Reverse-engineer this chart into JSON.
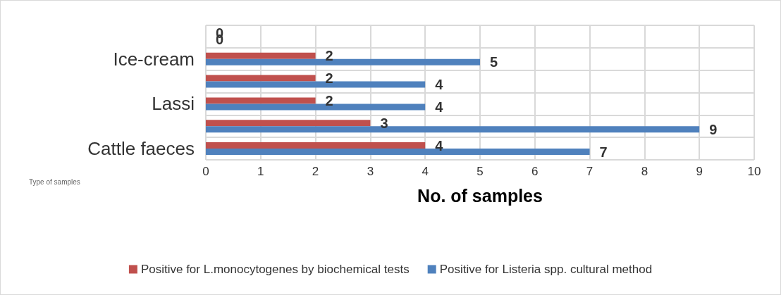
{
  "chart_data": {
    "type": "bar",
    "orientation": "horizontal",
    "xlabel": "No. of samples",
    "annotations": [
      "Type of samples"
    ],
    "categories": [
      null,
      "Ice-cream",
      null,
      "Lassi",
      null,
      "Cattle faeces"
    ],
    "series": [
      {
        "name": "Positive for L.monocytogenes by biochemical tests",
        "color": "#c0504d",
        "values": [
          0,
          2,
          2,
          2,
          3,
          4
        ]
      },
      {
        "name": "Positive for Listeria spp. cultural method",
        "color": "#4f81bd",
        "values": [
          0,
          5,
          4,
          4,
          9,
          7
        ]
      }
    ],
    "xlim": [
      0,
      10
    ],
    "xticks": [
      0,
      1,
      2,
      3,
      4,
      5,
      6,
      7,
      8,
      9,
      10
    ],
    "grid": true,
    "legend": "bottom",
    "data_labels": true
  }
}
